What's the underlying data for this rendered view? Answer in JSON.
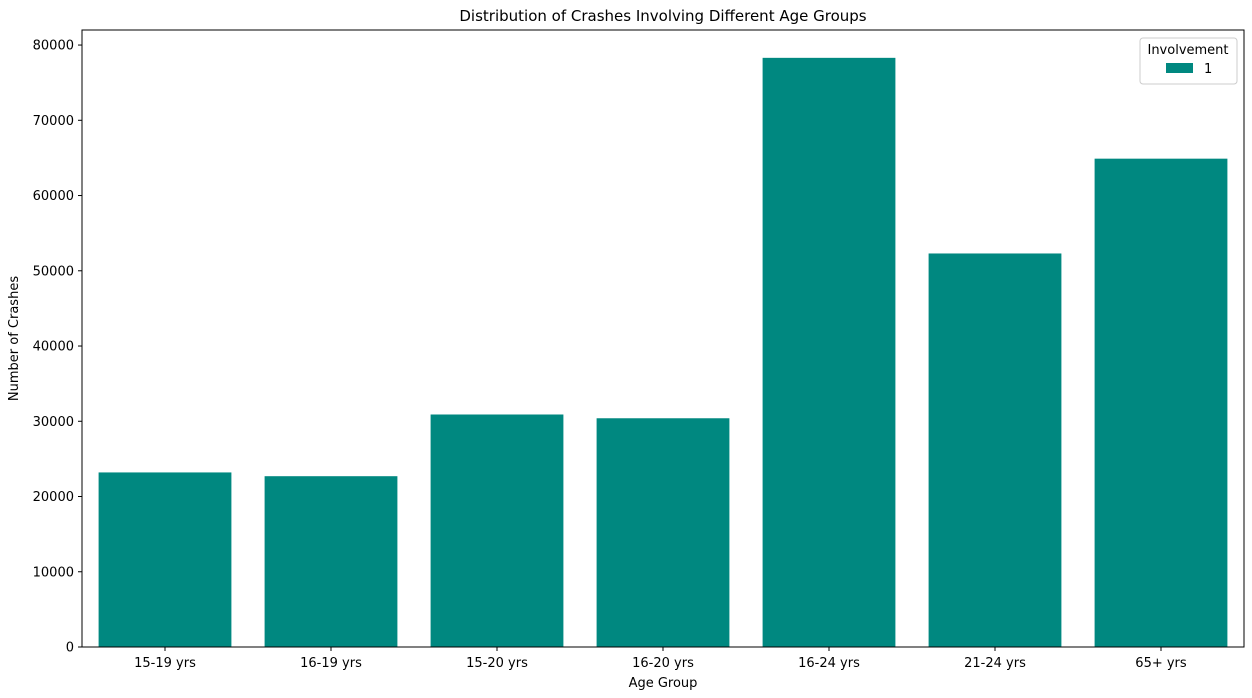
{
  "chart_data": {
    "type": "bar",
    "title": "Distribution of Crashes Involving Different Age Groups",
    "xlabel": "Age Group",
    "ylabel": "Number of Crashes",
    "categories": [
      "15-19 yrs",
      "16-19 yrs",
      "15-20 yrs",
      "16-20 yrs",
      "16-24 yrs",
      "21-24 yrs",
      "65+ yrs"
    ],
    "series": [
      {
        "name": "1",
        "values": [
          23200,
          22700,
          30900,
          30400,
          78300,
          52300,
          64900
        ],
        "color": "#008880"
      }
    ],
    "ylim": [
      0,
      82000
    ],
    "yticks": [
      0,
      10000,
      20000,
      30000,
      40000,
      50000,
      60000,
      70000,
      80000
    ],
    "ytick_labels": [
      "0",
      "10000",
      "20000",
      "30000",
      "40000",
      "50000",
      "60000",
      "70000",
      "80000"
    ],
    "legend": {
      "title": "Involvement",
      "entries": [
        "1"
      ],
      "position": "top-right"
    },
    "grid": false
  }
}
